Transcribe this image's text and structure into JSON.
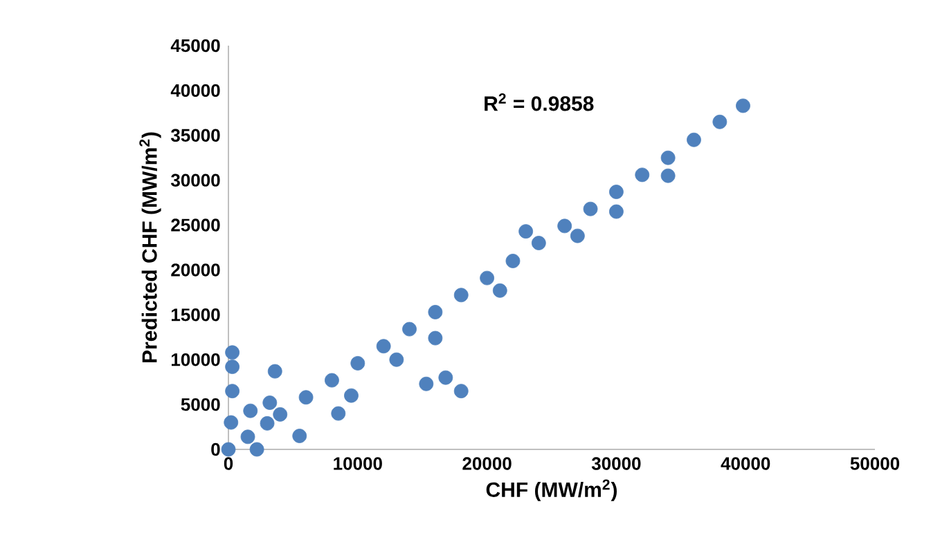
{
  "chart_data": {
    "type": "scatter",
    "xlabel": "CHF (MW/m$^{2}$)",
    "ylabel": "Predicted CHF (MW/m$^{2}$)",
    "annotations": [
      "R$^{2}$ = 0.9858"
    ],
    "xlim": [
      0,
      50000
    ],
    "xticks": [
      0,
      10000,
      20000,
      30000,
      40000,
      50000
    ],
    "ylim": [
      0,
      45000
    ],
    "yticks": [
      0,
      5000,
      10000,
      15000,
      20000,
      25000,
      30000,
      35000,
      40000,
      45000
    ],
    "series": [
      {
        "color": "#4f81bd",
        "x": [
          0,
          1500,
          3000,
          200,
          1700,
          3200,
          2200,
          5500,
          8500,
          300,
          300,
          300,
          3600,
          4000,
          6000,
          8000,
          10000,
          12000,
          14000,
          16000,
          18000,
          20000,
          22000,
          24000,
          26000,
          28000,
          30000,
          32000,
          34000,
          36000,
          38000,
          39800,
          9500,
          13000,
          23000,
          34000,
          15300,
          16800,
          18000,
          16000,
          21000,
          27000,
          30000
        ],
        "values": [
          0,
          1400,
          2900,
          3000,
          4300,
          5200,
          0,
          1500,
          4000,
          10800,
          9200,
          6500,
          8700,
          3900,
          5800,
          7700,
          9600,
          11500,
          13400,
          15300,
          17200,
          19100,
          21000,
          23000,
          24900,
          26800,
          28700,
          30600,
          32500,
          34500,
          36500,
          38300,
          6000,
          10000,
          24300,
          30500,
          7300,
          8000,
          6500,
          12400,
          17700,
          23800,
          26500
        ]
      }
    ]
  }
}
